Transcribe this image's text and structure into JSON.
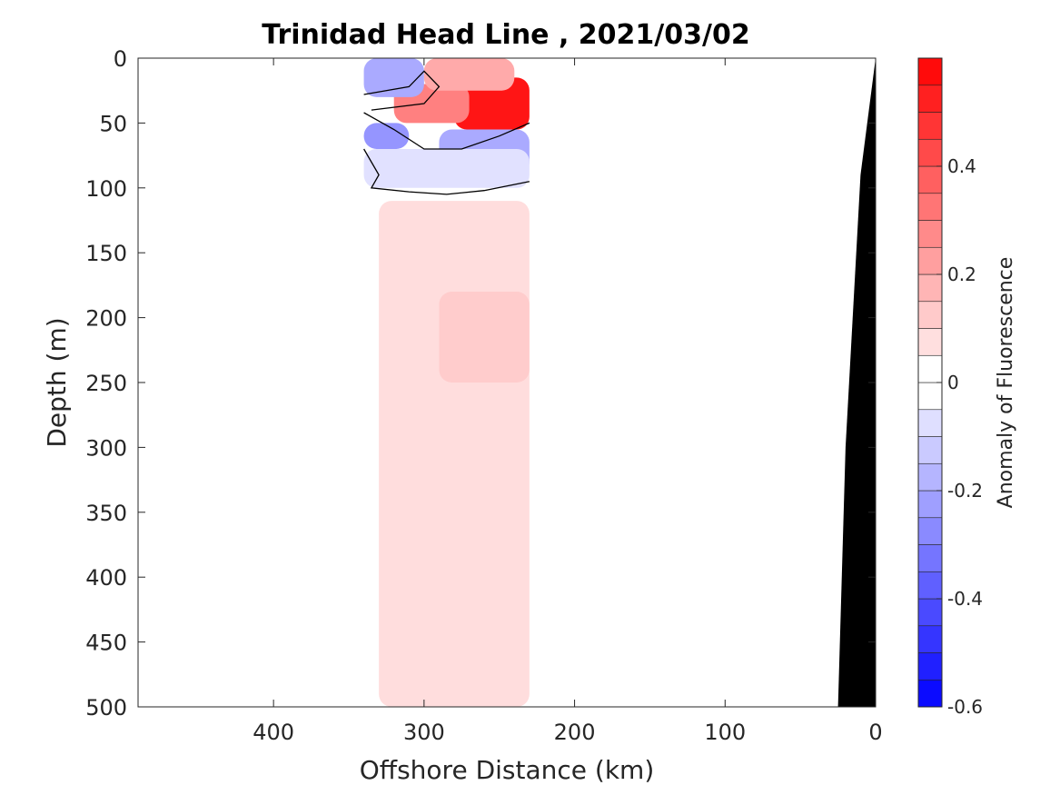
{
  "chart_data": {
    "type": "heatmap",
    "title": "Trinidad Head Line , 2021/03/02",
    "xlabel": "Offshore Distance (km)",
    "ylabel": "Depth (m)",
    "xlim": [
      490,
      0
    ],
    "ylim": [
      0,
      500
    ],
    "x_ticks": [
      400,
      300,
      200,
      100,
      0
    ],
    "x_tick_labels": [
      "400",
      "300",
      "200",
      "100",
      "0"
    ],
    "y_ticks": [
      0,
      50,
      100,
      150,
      200,
      250,
      300,
      350,
      400,
      450,
      500
    ],
    "y_tick_labels": [
      "0",
      "50",
      "100",
      "150",
      "200",
      "250",
      "300",
      "350",
      "400",
      "450",
      "500"
    ],
    "colorbar": {
      "label": "Anomaly of Fluorescence",
      "range": [
        -0.6,
        0.6
      ],
      "levels": 24,
      "ticks": [
        -0.6,
        -0.4,
        -0.2,
        0,
        0.2,
        0.4
      ],
      "tick_labels": [
        "-0.6",
        "-0.4",
        "-0.2",
        "0",
        "0.2",
        "0.4"
      ],
      "colormap": "blue-white-red"
    },
    "data_extent_km": [
      230,
      340
    ],
    "anomaly_regions": [
      {
        "x": [
          280,
          230
        ],
        "depth": [
          15,
          55
        ],
        "value": 0.55
      },
      {
        "x": [
          320,
          270
        ],
        "depth": [
          20,
          50
        ],
        "value": 0.3
      },
      {
        "x": [
          300,
          240
        ],
        "depth": [
          0,
          25
        ],
        "value": 0.2
      },
      {
        "x": [
          340,
          300
        ],
        "depth": [
          0,
          30
        ],
        "value": -0.2
      },
      {
        "x": [
          340,
          310
        ],
        "depth": [
          50,
          70
        ],
        "value": -0.25
      },
      {
        "x": [
          290,
          230
        ],
        "depth": [
          55,
          90
        ],
        "value": -0.2
      },
      {
        "x": [
          340,
          230
        ],
        "depth": [
          70,
          100
        ],
        "value": -0.07
      },
      {
        "x": [
          330,
          230
        ],
        "depth": [
          110,
          500
        ],
        "value": 0.08
      },
      {
        "x": [
          290,
          230
        ],
        "depth": [
          180,
          250
        ],
        "value": 0.12
      }
    ],
    "zero_contour": [
      [
        [
          340,
          28
        ],
        [
          310,
          22
        ],
        [
          300,
          10
        ],
        [
          290,
          22
        ],
        [
          300,
          35
        ],
        [
          335,
          40
        ]
      ],
      [
        [
          340,
          70
        ],
        [
          330,
          90
        ],
        [
          335,
          100
        ],
        [
          310,
          103
        ],
        [
          285,
          105
        ],
        [
          260,
          102
        ],
        [
          230,
          95
        ]
      ],
      [
        [
          340,
          42
        ],
        [
          320,
          55
        ],
        [
          300,
          70
        ],
        [
          275,
          70
        ],
        [
          250,
          60
        ],
        [
          230,
          50
        ]
      ]
    ],
    "bathymetry": [
      [
        0,
        0
      ],
      [
        10,
        90
      ],
      [
        20,
        300
      ],
      [
        25,
        500
      ],
      [
        0,
        500
      ]
    ],
    "colors": {
      "bathymetry": "#000000",
      "zero_contour": "#000000"
    }
  }
}
